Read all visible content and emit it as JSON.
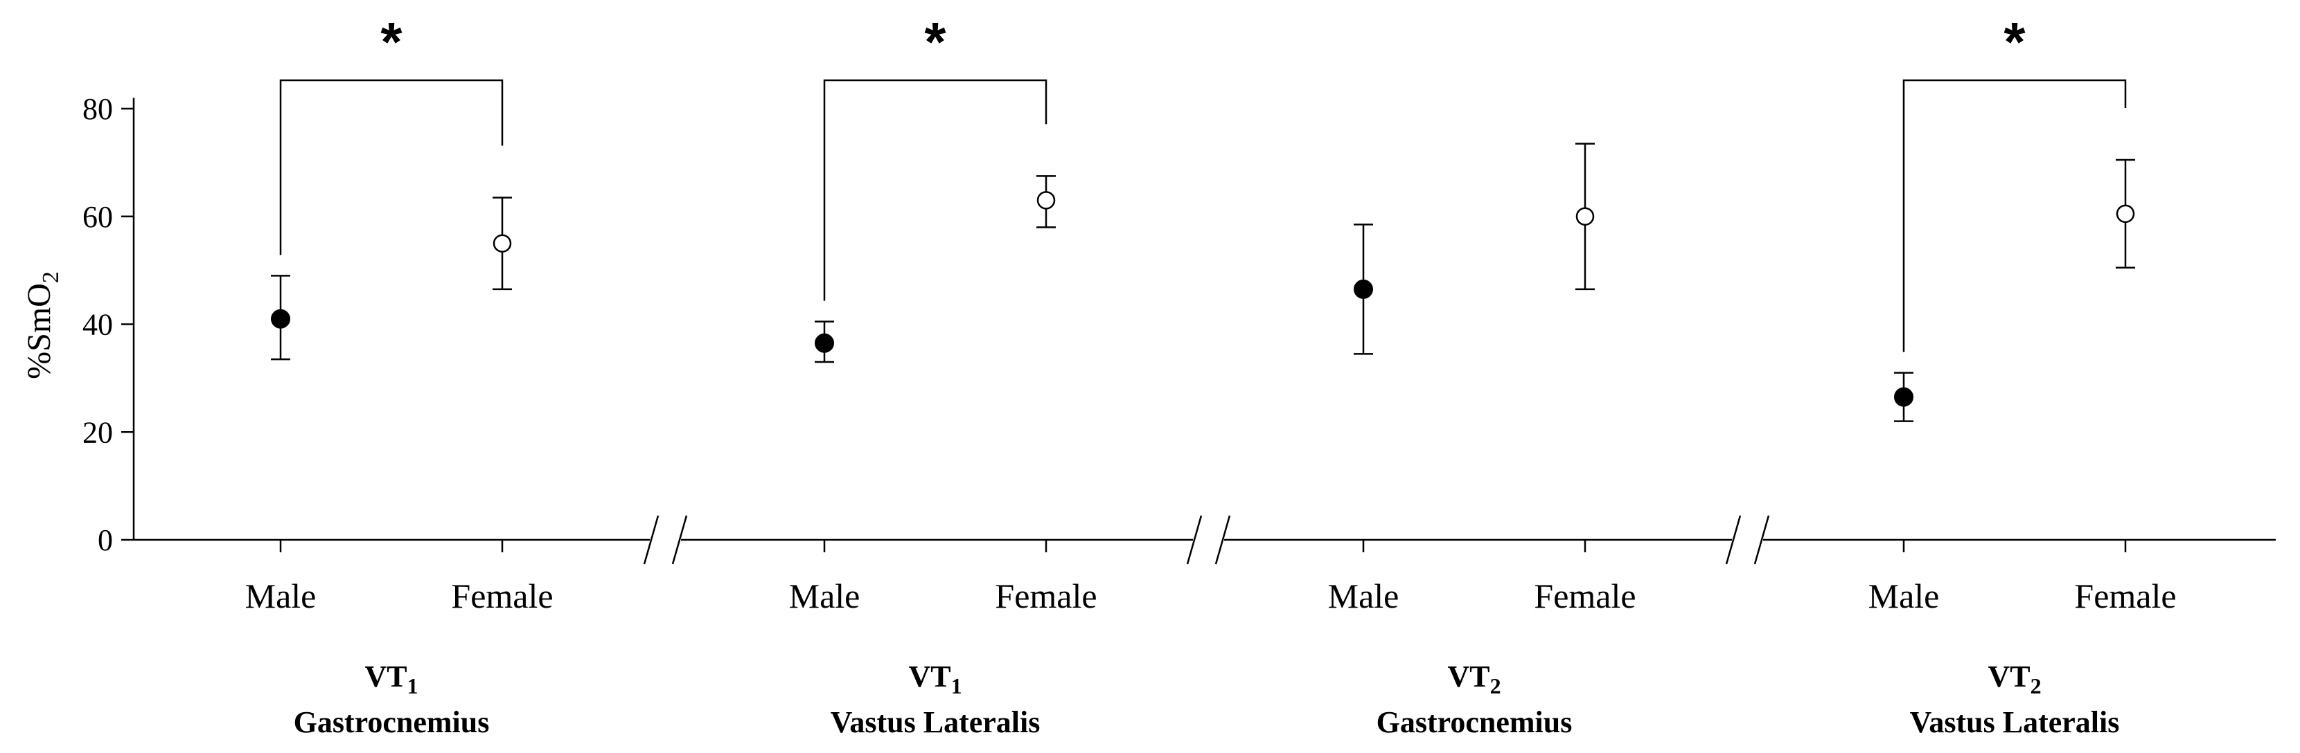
{
  "chart_data": {
    "type": "scatter",
    "ylabel": "%SmO",
    "ylabel_sub": "2",
    "ylim": [
      0,
      85
    ],
    "yticks": [
      "0",
      "20",
      "40",
      "60",
      "80"
    ],
    "grid": false,
    "legend": "none",
    "significance_marker": "*",
    "groups": [
      {
        "label_line1": "VT",
        "label_sub": "1",
        "label_line2": "Gastrocnemius",
        "points": [
          {
            "category": "Male",
            "mean": 41,
            "lower": 33.5,
            "upper": 49,
            "filled": true
          },
          {
            "category": "Female",
            "mean": 55,
            "lower": 46.5,
            "upper": 63.5,
            "filled": false
          }
        ],
        "significant": true
      },
      {
        "label_line1": "VT",
        "label_sub": "1",
        "label_line2": "Vastus Lateralis",
        "points": [
          {
            "category": "Male",
            "mean": 36.5,
            "lower": 33,
            "upper": 40.5,
            "filled": true
          },
          {
            "category": "Female",
            "mean": 63,
            "lower": 58,
            "upper": 67.5,
            "filled": false
          }
        ],
        "significant": true
      },
      {
        "label_line1": "VT",
        "label_sub": "2",
        "label_line2": "Gastrocnemius",
        "points": [
          {
            "category": "Male",
            "mean": 46.5,
            "lower": 34.5,
            "upper": 58.5,
            "filled": true
          },
          {
            "category": "Female",
            "mean": 60,
            "lower": 46.5,
            "upper": 73.5,
            "filled": false
          }
        ],
        "significant": false
      },
      {
        "label_line1": "VT",
        "label_sub": "2",
        "label_line2": "Vastus Lateralis",
        "points": [
          {
            "category": "Male",
            "mean": 26.5,
            "lower": 22,
            "upper": 31,
            "filled": true
          },
          {
            "category": "Female",
            "mean": 60.5,
            "lower": 50.5,
            "upper": 70.5,
            "filled": false
          }
        ],
        "significant": true
      }
    ]
  }
}
